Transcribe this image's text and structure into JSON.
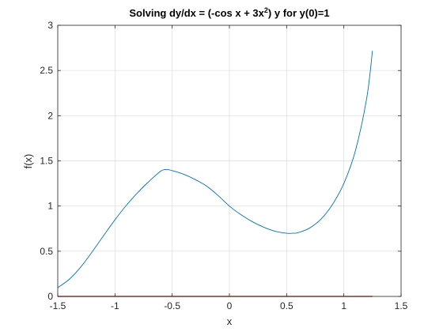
{
  "chart_data": {
    "type": "line",
    "title": {
      "prefix": "Solving dy/dx = (-cos x + 3x",
      "superscript": "2",
      "suffix": ") y for y(0)=1"
    },
    "xlabel": "x",
    "ylabel": "f(x)",
    "xlim": [
      -1.5,
      1.5
    ],
    "ylim": [
      0,
      3
    ],
    "xticks": [
      -1.5,
      -1,
      -0.5,
      0,
      0.5,
      1,
      1.5
    ],
    "xtick_labels": [
      "-1.5",
      "-1",
      "-0.5",
      "0",
      "0.5",
      "1",
      "1.5"
    ],
    "yticks": [
      0,
      0.5,
      1,
      1.5,
      2,
      2.5,
      3
    ],
    "ytick_labels": [
      "0",
      "0.5",
      "1",
      "1.5",
      "2",
      "2.5",
      "3"
    ],
    "grid": true,
    "legend": "none",
    "series": [
      {
        "color": "#0072BD",
        "x": [
          -1.5,
          -1.4,
          -1.3,
          -1.2,
          -1.1,
          -1.0,
          -0.9,
          -0.8,
          -0.7,
          -0.6,
          -0.55,
          -0.5,
          -0.4,
          -0.3,
          -0.2,
          -0.1,
          0.0,
          0.1,
          0.2,
          0.3,
          0.4,
          0.5,
          0.55,
          0.6,
          0.7,
          0.8,
          0.9,
          1.0,
          1.1,
          1.2,
          1.25
        ],
        "y": [
          0.097,
          0.189,
          0.324,
          0.492,
          0.672,
          0.848,
          1.009,
          1.151,
          1.276,
          1.386,
          1.405,
          1.392,
          1.352,
          1.294,
          1.221,
          1.118,
          1.0,
          0.905,
          0.827,
          0.766,
          0.721,
          0.699,
          0.699,
          0.706,
          0.756,
          0.855,
          1.017,
          1.25,
          1.607,
          2.196,
          2.718
        ]
      },
      {
        "color": "#D95319",
        "x": [
          -1.5,
          1.25
        ],
        "y": [
          0,
          0
        ]
      }
    ]
  }
}
